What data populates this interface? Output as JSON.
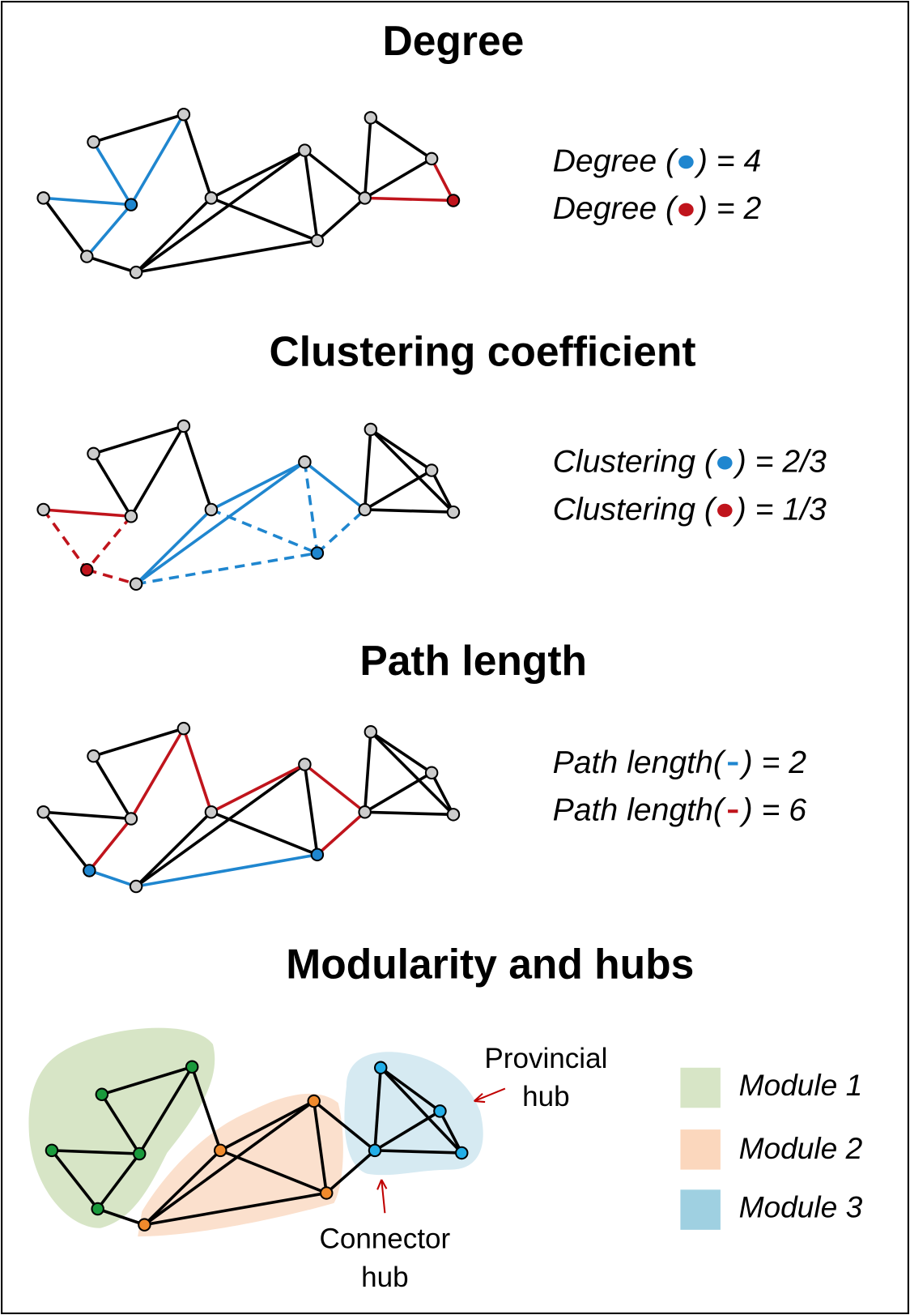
{
  "sections": [
    {
      "title": "Degree",
      "labels": [
        {
          "prefix": "Degree (",
          "suffix": ") = 4"
        },
        {
          "prefix": "Degree (",
          "suffix": ") = 2"
        }
      ]
    },
    {
      "title": "Clustering coefficient",
      "labels": [
        {
          "prefix": "Clustering (",
          "suffix": ") = 2/3"
        },
        {
          "prefix": "Clustering (",
          "suffix": ") = 1/3"
        }
      ]
    },
    {
      "title": "Path length",
      "labels": [
        {
          "prefix": "Path length(",
          "suffix": ") = 2"
        },
        {
          "prefix": "Path length(",
          "suffix": ") = 6"
        }
      ]
    }
  ],
  "modularity": {
    "title": "Modularity and hubs",
    "legend": [
      "Module 1",
      "Module 2",
      "Module 3"
    ],
    "provincial": [
      "Provincial",
      "hub"
    ],
    "connector": [
      "Connector",
      "hub"
    ]
  }
}
